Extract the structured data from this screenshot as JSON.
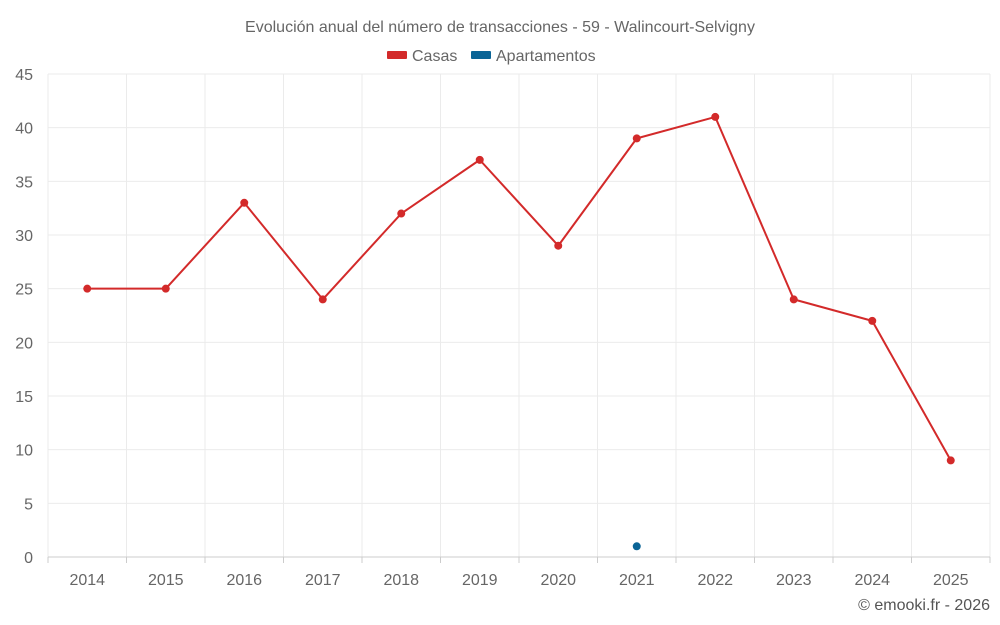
{
  "chart_data": {
    "type": "line",
    "title": "Evolución anual del número de transacciones - 59 - Walincourt-Selvigny",
    "categories": [
      "2014",
      "2015",
      "2016",
      "2017",
      "2018",
      "2019",
      "2020",
      "2021",
      "2022",
      "2023",
      "2024",
      "2025"
    ],
    "series": [
      {
        "name": "Casas",
        "color": "#d32a2a",
        "values": [
          25,
          25,
          33,
          24,
          32,
          37,
          29,
          39,
          41,
          24,
          22,
          9
        ]
      },
      {
        "name": "Apartamentos",
        "color": "#0a6496",
        "values": [
          null,
          null,
          null,
          null,
          null,
          null,
          null,
          1,
          null,
          null,
          null,
          null
        ]
      }
    ],
    "ylim": [
      0,
      45
    ],
    "yticks": [
      "0",
      "5",
      "10",
      "15",
      "20",
      "25",
      "30",
      "35",
      "40",
      "45"
    ],
    "grid": true,
    "legend_position": "top-center"
  },
  "credit": "© emooki.fr - 2026"
}
